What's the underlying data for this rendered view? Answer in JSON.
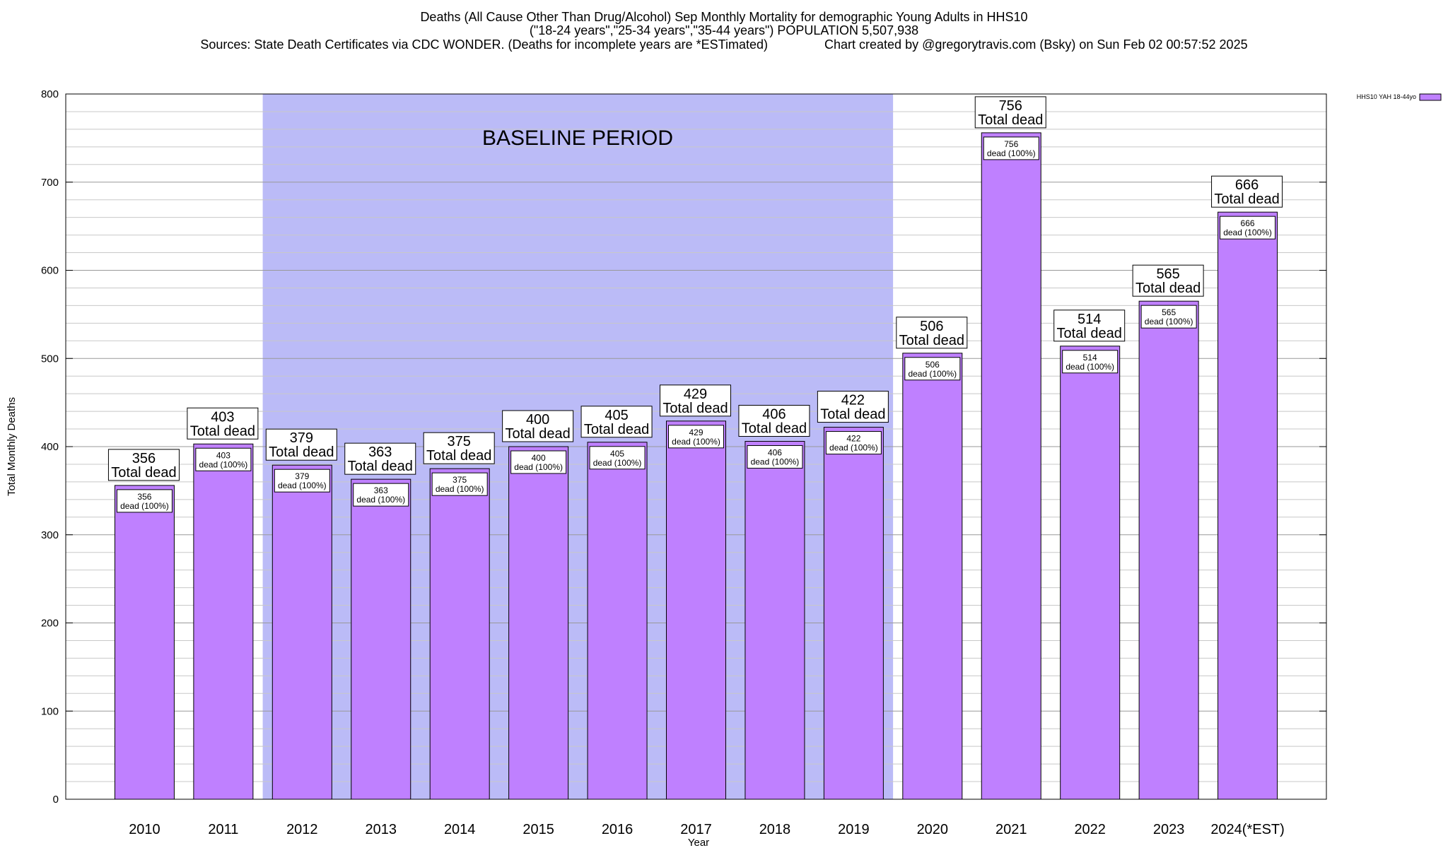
{
  "header": {
    "title_line1": "Deaths (All Cause Other Than Drug/Alcohol) Sep Monthly Mortality for demographic Young Adults in HHS10",
    "title_line2": "(\"18-24 years\",\"25-34 years\",\"35-44 years\") POPULATION 5,507,938",
    "title_line3": "Sources: State Death Certificates via CDC WONDER. (Deaths for incomplete years are *ESTimated)                Chart created by @gregorytravis.com (Bsky) on Sun Feb 02 00:57:52 2025"
  },
  "chart_data": {
    "type": "bar",
    "title": "Deaths (All Cause Other Than Drug/Alcohol) Sep Monthly Mortality for demographic Young Adults in HHS10",
    "xlabel": "Year",
    "ylabel": "Total Monthly Deaths",
    "ylim": [
      0,
      800
    ],
    "yticks": [
      0,
      100,
      200,
      300,
      400,
      500,
      600,
      700,
      800
    ],
    "grid": true,
    "legend_position": "top-right",
    "categories": [
      "2010",
      "2011",
      "2012",
      "2013",
      "2014",
      "2015",
      "2016",
      "2017",
      "2018",
      "2019",
      "2020",
      "2021",
      "2022",
      "2023",
      "2024(*EST)"
    ],
    "series": [
      {
        "name": "HHS10 YAH 18-44yo",
        "color": "#bf80ff",
        "values": [
          356,
          403,
          379,
          363,
          375,
          400,
          405,
          429,
          406,
          422,
          506,
          756,
          514,
          565,
          666
        ]
      }
    ],
    "top_label_suffix": "Total dead",
    "inner_label_suffix": "dead (100%)",
    "baseline": {
      "label": "BASELINE PERIOD",
      "from": "2012",
      "to": "2019",
      "color": "#bbbbf7"
    }
  }
}
